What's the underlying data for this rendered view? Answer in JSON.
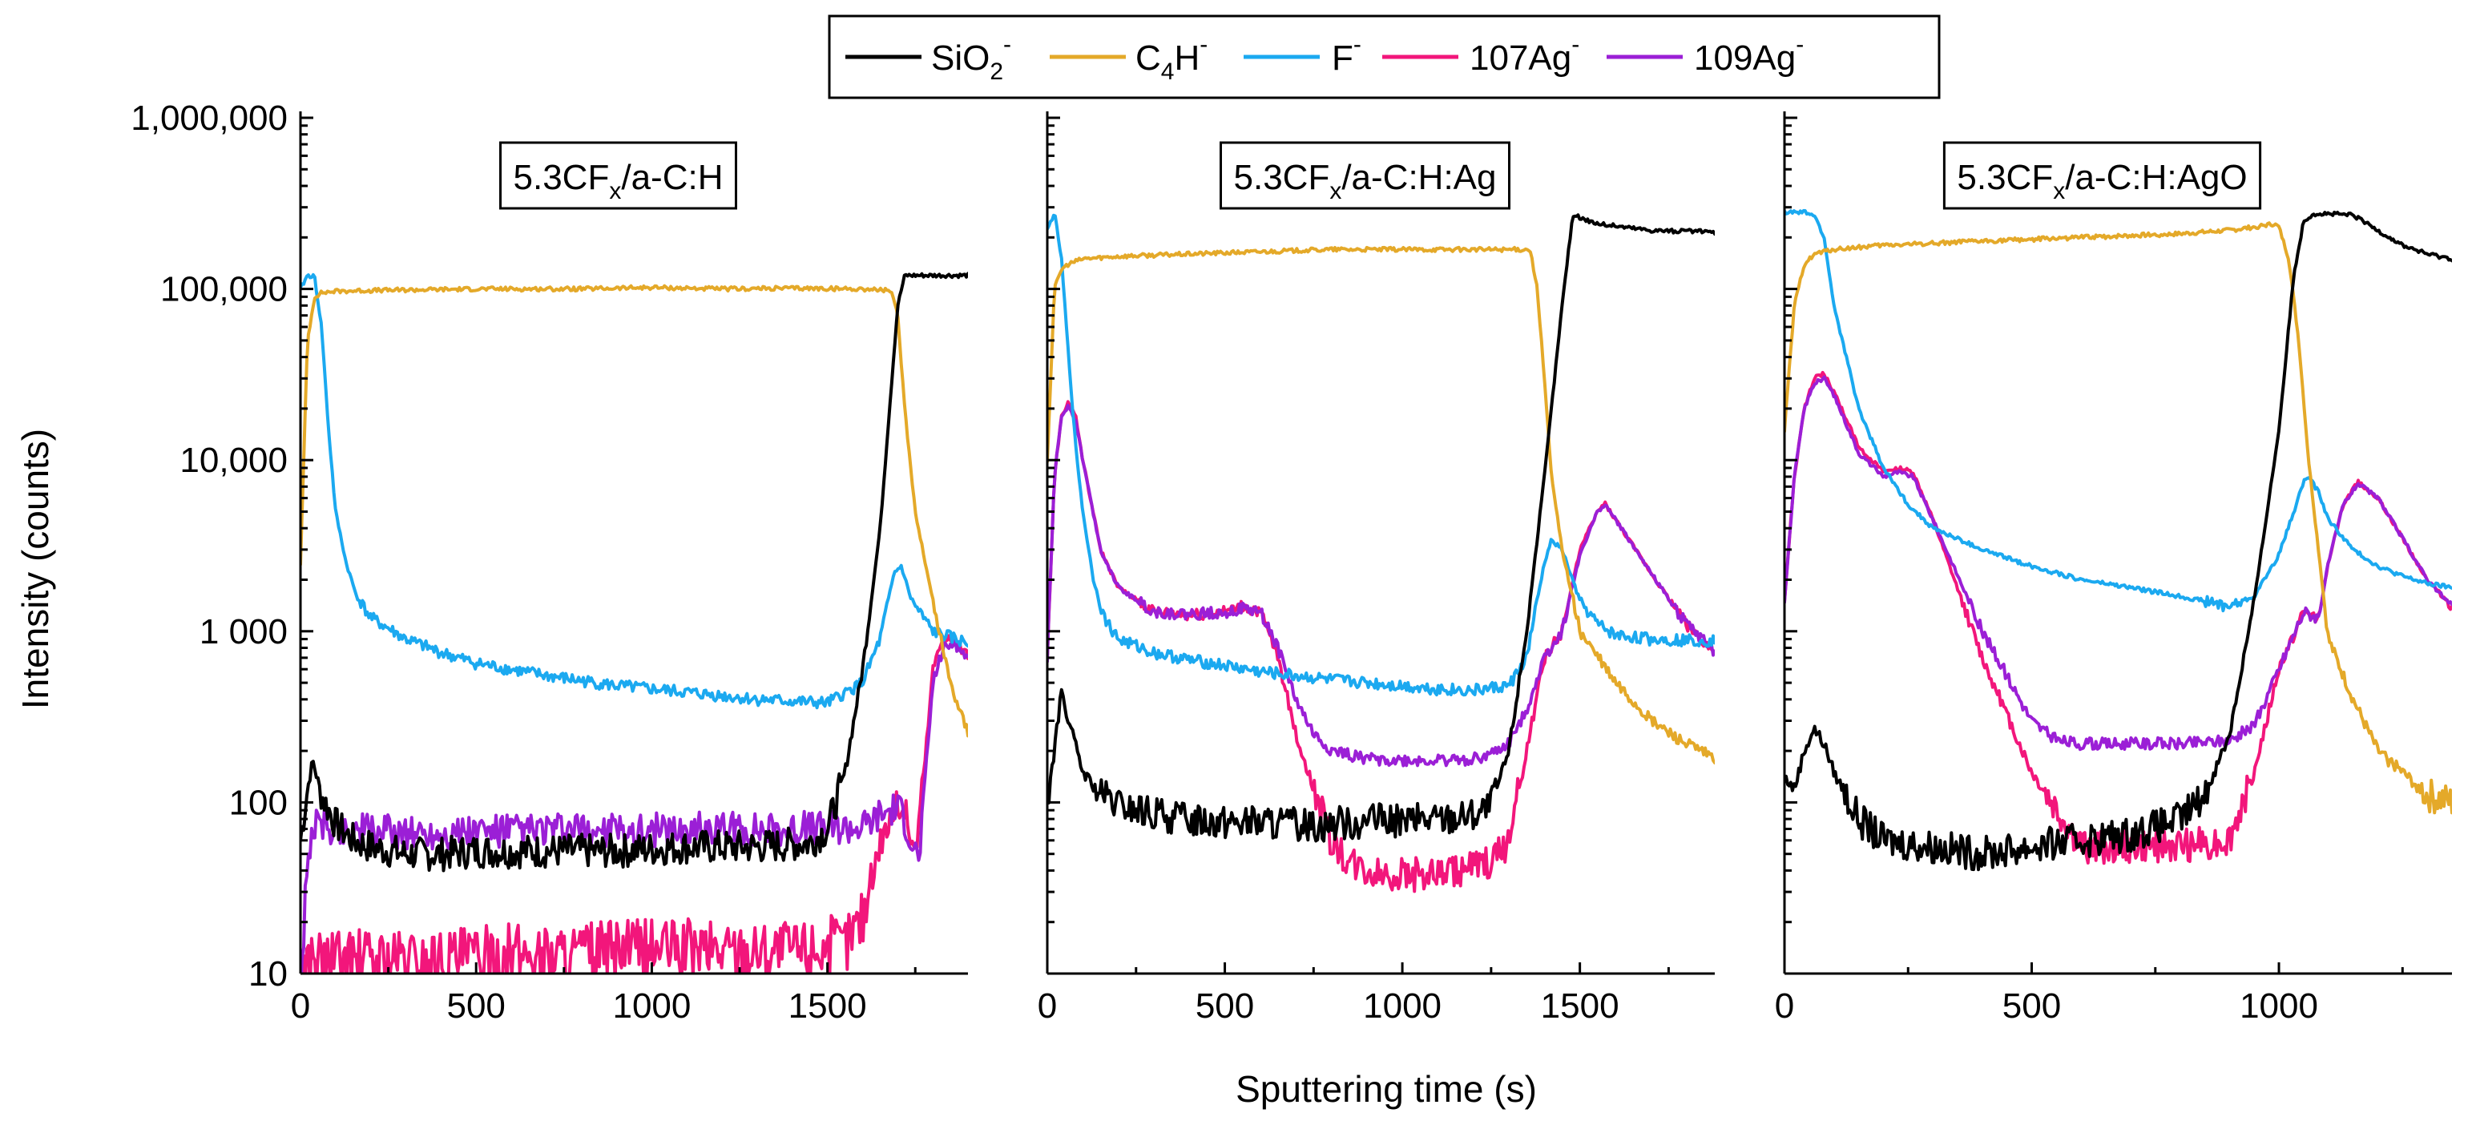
{
  "chart_data": [
    {
      "type": "line",
      "panel_label": {
        "base": "5.3CF",
        "sub": "x",
        "rest": "/a-C:H"
      },
      "xlim": [
        0,
        1900
      ],
      "xticks": [
        0,
        500,
        1000,
        1500
      ],
      "series": [
        {
          "name": "SiO2-",
          "x": [
            0,
            20,
            35,
            60,
            100,
            150,
            200,
            300,
            400,
            500,
            700,
            900,
            1100,
            1300,
            1450,
            1500,
            1550,
            1600,
            1650,
            1700,
            1720,
            1800,
            1900
          ],
          "y": [
            60,
            120,
            175,
            110,
            75,
            60,
            55,
            50,
            50,
            52,
            52,
            52,
            55,
            55,
            58,
            70,
            150,
            600,
            4000,
            80000,
            120000,
            120000,
            120000
          ]
        },
        {
          "name": "C4H-",
          "x": [
            0,
            20,
            40,
            60,
            100,
            200,
            500,
            800,
            1000,
            1200,
            1400,
            1600,
            1680,
            1700,
            1720,
            1750,
            1800,
            1850,
            1900
          ],
          "y": [
            2500,
            50000,
            90000,
            95000,
            97000,
            98000,
            100000,
            100000,
            102000,
            100000,
            101000,
            100000,
            98000,
            70000,
            20000,
            5000,
            1500,
            500,
            260
          ]
        },
        {
          "name": "F-",
          "x": [
            0,
            20,
            40,
            60,
            80,
            100,
            130,
            160,
            200,
            300,
            400,
            500,
            700,
            900,
            1100,
            1300,
            1500,
            1600,
            1650,
            1690,
            1710,
            1740,
            1800,
            1900
          ],
          "y": [
            100000,
            120000,
            118000,
            60000,
            15000,
            5000,
            2500,
            1600,
            1200,
            900,
            750,
            650,
            550,
            480,
            440,
            400,
            380,
            500,
            900,
            2200,
            2400,
            1500,
            1000,
            850
          ]
        },
        {
          "name": "107Ag-",
          "x": [
            0,
            20,
            50,
            100,
            200,
            400,
            600,
            800,
            1000,
            1200,
            1400,
            1550,
            1600,
            1650,
            1700,
            1720,
            1750,
            1780,
            1800,
            1830,
            1860,
            1900
          ],
          "y": [
            10,
            12,
            12,
            12,
            12,
            12,
            13,
            13,
            14,
            14,
            14,
            15,
            22,
            60,
            100,
            90,
            50,
            200,
            600,
            950,
            900,
            700
          ]
        },
        {
          "name": "109Ag-",
          "x": [
            0,
            30,
            60,
            100,
            200,
            400,
            600,
            800,
            1000,
            1200,
            1400,
            1600,
            1650,
            1700,
            1720,
            1740,
            1760,
            1780,
            1800,
            1830,
            1860,
            1900
          ],
          "y": [
            10,
            70,
            75,
            70,
            68,
            66,
            68,
            68,
            69,
            70,
            70,
            72,
            85,
            95,
            80,
            60,
            45,
            150,
            500,
            800,
            850,
            700
          ]
        }
      ]
    },
    {
      "type": "line",
      "panel_label": {
        "base": "5.3CF",
        "sub": "x",
        "rest": "/a-C:H:Ag"
      },
      "xlim": [
        0,
        1880
      ],
      "xticks": [
        0,
        500,
        1000,
        1500
      ],
      "series": [
        {
          "name": "SiO2-",
          "x": [
            0,
            20,
            40,
            60,
            100,
            150,
            200,
            300,
            400,
            500,
            600,
            700,
            800,
            900,
            1000,
            1100,
            1200,
            1250,
            1300,
            1350,
            1400,
            1450,
            1480,
            1550,
            1700,
            1880
          ],
          "y": [
            100,
            200,
            450,
            300,
            150,
            110,
            95,
            85,
            80,
            78,
            76,
            74,
            75,
            78,
            78,
            80,
            85,
            95,
            200,
            1000,
            8000,
            80000,
            270000,
            240000,
            220000,
            215000
          ]
        },
        {
          "name": "C4H-",
          "x": [
            0,
            20,
            40,
            60,
            100,
            200,
            400,
            600,
            800,
            1000,
            1200,
            1300,
            1360,
            1380,
            1400,
            1420,
            1450,
            1500,
            1600,
            1700,
            1800,
            1880
          ],
          "y": [
            10000,
            100000,
            130000,
            140000,
            150000,
            155000,
            160000,
            165000,
            170000,
            170000,
            170000,
            170000,
            170000,
            100000,
            30000,
            8000,
            3000,
            1000,
            500,
            300,
            220,
            180
          ]
        },
        {
          "name": "F-",
          "x": [
            0,
            20,
            40,
            60,
            80,
            100,
            130,
            160,
            200,
            300,
            400,
            500,
            600,
            700,
            800,
            900,
            1000,
            1100,
            1200,
            1300,
            1350,
            1400,
            1420,
            1450,
            1500,
            1550,
            1600,
            1700,
            1880
          ],
          "y": [
            220000,
            280000,
            150000,
            40000,
            12000,
            5000,
            2000,
            1200,
            900,
            750,
            680,
            630,
            580,
            550,
            520,
            500,
            480,
            460,
            450,
            480,
            700,
            2500,
            3400,
            3000,
            1500,
            1100,
            950,
            900,
            880
          ]
        },
        {
          "name": "107Ag-",
          "x": [
            0,
            20,
            40,
            60,
            80,
            100,
            150,
            200,
            300,
            400,
            500,
            550,
            600,
            650,
            700,
            750,
            800,
            850,
            900,
            1000,
            1100,
            1200,
            1250,
            1300,
            1350,
            1400,
            1450,
            1500,
            1550,
            1570,
            1600,
            1700,
            1800,
            1880
          ],
          "y": [
            700,
            8000,
            18000,
            22000,
            18000,
            10000,
            3000,
            1800,
            1300,
            1250,
            1300,
            1400,
            1300,
            700,
            250,
            120,
            60,
            45,
            40,
            38,
            38,
            42,
            45,
            60,
            200,
            700,
            1000,
            3000,
            5000,
            5600,
            4500,
            2200,
            1100,
            750
          ]
        },
        {
          "name": "109Ag-",
          "x": [
            0,
            20,
            40,
            60,
            80,
            100,
            150,
            200,
            300,
            400,
            500,
            550,
            600,
            650,
            700,
            750,
            800,
            850,
            900,
            1000,
            1100,
            1200,
            1250,
            1300,
            1350,
            1400,
            1450,
            1500,
            1550,
            1570,
            1600,
            1700,
            1800,
            1880
          ],
          "y": [
            700,
            8000,
            18000,
            21000,
            17000,
            10000,
            3000,
            1800,
            1300,
            1250,
            1300,
            1350,
            1300,
            800,
            400,
            250,
            200,
            190,
            180,
            175,
            175,
            180,
            190,
            220,
            350,
            700,
            1000,
            2800,
            5000,
            5500,
            4500,
            2200,
            1100,
            750
          ]
        }
      ]
    },
    {
      "type": "line",
      "panel_label": {
        "base": "5.3CF",
        "sub": "x",
        "rest": "/a-C:H:AgO"
      },
      "xlim": [
        0,
        1350
      ],
      "xticks": [
        0,
        500,
        1000
      ],
      "series": [
        {
          "name": "SiO2-",
          "x": [
            0,
            20,
            40,
            60,
            80,
            100,
            150,
            200,
            300,
            400,
            500,
            600,
            700,
            800,
            850,
            900,
            950,
            1000,
            1030,
            1050,
            1070,
            1100,
            1150,
            1200,
            1250,
            1300,
            1350
          ],
          "y": [
            140,
            120,
            200,
            270,
            220,
            150,
            80,
            60,
            55,
            50,
            55,
            60,
            65,
            80,
            110,
            250,
            1500,
            15000,
            120000,
            250000,
            275000,
            275000,
            270000,
            220000,
            180000,
            160000,
            150000
          ]
        },
        {
          "name": "C4H-",
          "x": [
            0,
            20,
            40,
            60,
            100,
            200,
            400,
            600,
            800,
            900,
            950,
            990,
            1000,
            1020,
            1040,
            1060,
            1080,
            1100,
            1150,
            1200,
            1250,
            1300,
            1350
          ],
          "y": [
            15000,
            80000,
            140000,
            160000,
            170000,
            180000,
            190000,
            200000,
            210000,
            220000,
            230000,
            240000,
            230000,
            150000,
            50000,
            10000,
            3000,
            900,
            400,
            200,
            150,
            110,
            100
          ]
        },
        {
          "name": "F-",
          "x": [
            0,
            20,
            40,
            60,
            80,
            100,
            150,
            200,
            250,
            300,
            400,
            500,
            600,
            700,
            800,
            850,
            900,
            950,
            1000,
            1030,
            1050,
            1060,
            1080,
            1100,
            1150,
            1200,
            1250,
            1300,
            1350
          ],
          "y": [
            280000,
            280000,
            280000,
            270000,
            200000,
            80000,
            20000,
            9000,
            5500,
            4000,
            3000,
            2400,
            2000,
            1800,
            1600,
            1500,
            1400,
            1600,
            2800,
            5000,
            7500,
            8000,
            6500,
            4500,
            3000,
            2400,
            2100,
            1900,
            1800
          ]
        },
        {
          "name": "107Ag-",
          "x": [
            0,
            20,
            40,
            60,
            80,
            100,
            150,
            200,
            230,
            260,
            300,
            400,
            500,
            550,
            600,
            700,
            800,
            900,
            950,
            1000,
            1050,
            1080,
            1100,
            1130,
            1160,
            1200,
            1250,
            1300,
            1350
          ],
          "y": [
            1500,
            8000,
            20000,
            30000,
            32000,
            25000,
            12000,
            8500,
            9000,
            8500,
            4500,
            700,
            150,
            90,
            55,
            55,
            55,
            60,
            150,
            600,
            1300,
            1200,
            2500,
            5500,
            7500,
            6000,
            3500,
            2000,
            1400
          ]
        },
        {
          "name": "109Ag-",
          "x": [
            0,
            20,
            40,
            60,
            80,
            100,
            150,
            200,
            230,
            260,
            300,
            400,
            500,
            550,
            600,
            700,
            800,
            900,
            950,
            1000,
            1050,
            1080,
            1100,
            1130,
            1160,
            1200,
            1250,
            1300,
            1350
          ],
          "y": [
            1500,
            8000,
            20000,
            28000,
            30000,
            24000,
            11000,
            8000,
            8500,
            8000,
            4500,
            1000,
            300,
            230,
            220,
            220,
            220,
            230,
            280,
            600,
            1300,
            1200,
            2500,
            5500,
            7300,
            6000,
            3500,
            2000,
            1400
          ]
        }
      ]
    }
  ],
  "y_axis": {
    "label": "Intensity (counts)",
    "type": "log",
    "range": [
      10,
      1000000
    ],
    "tick_labels": [
      "10",
      "100",
      "1 000",
      "10,000",
      "100,000",
      "1,000,000"
    ]
  },
  "x_axis": {
    "label": "Sputtering time (s)"
  },
  "legend": [
    {
      "name": "SiO2-",
      "base": "SiO",
      "sub": "2",
      "sup": "-",
      "color": "#000000"
    },
    {
      "name": "C4H-",
      "base": "C",
      "sub": "4",
      "base2": "H",
      "sup": "-",
      "color": "#E4A929"
    },
    {
      "name": "F-",
      "base": "F",
      "sub": "",
      "sup": "-",
      "color": "#1BA9F0"
    },
    {
      "name": "107Ag-",
      "base": "107Ag",
      "sub": "",
      "sup": "-",
      "color": "#F2167B"
    },
    {
      "name": "109Ag-",
      "base": "109Ag",
      "sub": "",
      "sup": "-",
      "color": "#9B1FD6"
    }
  ]
}
